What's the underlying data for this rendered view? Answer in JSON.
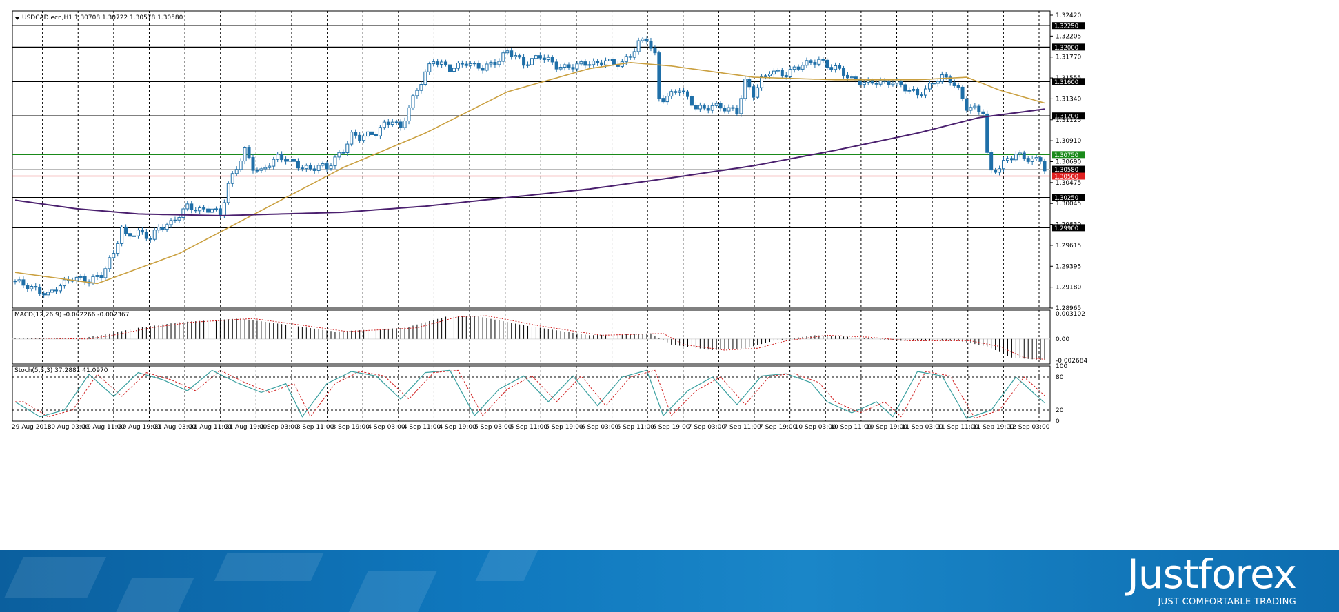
{
  "header": {
    "symbol_line": "USDCAD.ecn,H1  1.30708 1.30722 1.30578 1.30580",
    "macd_line": "MACD(12,26,9) -0.002266 -0.002367",
    "stoch_line": "Stoch(5,3,3) 37.2881 41.0970"
  },
  "colors": {
    "candle": "#1f6fa8",
    "ma_fast": "#caa040",
    "ma_slow": "#4a1f6e",
    "level_line": "#000000",
    "level_green": "#1a8a1a",
    "level_red": "#e02020",
    "macd_signal": "#d02020",
    "stoch_main": "#3aa0a0",
    "stoch_signal": "#d02020"
  },
  "chart_data": {
    "type": "candlestick",
    "symbol": "USDCAD.ecn",
    "timeframe": "H1",
    "ylim": [
      1.28965,
      1.3242
    ],
    "y_ticks": [
      "1.32420",
      "1.32205",
      "1.31770",
      "1.31555",
      "1.31340",
      "1.31125",
      "1.30910",
      "1.30690",
      "1.30475",
      "1.30045",
      "1.29830",
      "1.29615",
      "1.29395",
      "1.29180",
      "1.28965"
    ],
    "x_ticks": [
      "29 Aug 2018",
      "30 Aug 03:00",
      "30 Aug 11:00",
      "30 Aug 19:00",
      "31 Aug 03:00",
      "31 Aug 11:00",
      "31 Aug 19:00",
      "3 Sep 03:00",
      "3 Sep 11:00",
      "3 Sep 19:00",
      "4 Sep 03:00",
      "4 Sep 11:00",
      "4 Sep 19:00",
      "5 Sep 03:00",
      "5 Sep 11:00",
      "5 Sep 19:00",
      "6 Sep 03:00",
      "6 Sep 11:00",
      "6 Sep 19:00",
      "7 Sep 03:00",
      "7 Sep 11:00",
      "7 Sep 19:00",
      "10 Sep 03:00",
      "10 Sep 11:00",
      "10 Sep 19:00",
      "11 Sep 03:00",
      "11 Sep 11:00",
      "11 Sep 19:00",
      "12 Sep 03:00"
    ],
    "current_price": "1.30580",
    "levels": [
      {
        "label": "1.32250",
        "value": 1.3225,
        "color": "#000000"
      },
      {
        "label": "1.32000",
        "value": 1.32,
        "color": "#000000"
      },
      {
        "label": "1.31600",
        "value": 1.316,
        "color": "#000000"
      },
      {
        "label": "1.31200",
        "value": 1.312,
        "color": "#000000"
      },
      {
        "label": "1.30750",
        "value": 1.3075,
        "color": "#1a8a1a"
      },
      {
        "label": "1.30500",
        "value": 1.305,
        "color": "#e02020"
      },
      {
        "label": "1.30250",
        "value": 1.3025,
        "color": "#000000"
      },
      {
        "label": "1.29900",
        "value": 1.299,
        "color": "#000000"
      }
    ],
    "close_path": [
      [
        0,
        1.2928
      ],
      [
        5,
        1.2918
      ],
      [
        8,
        1.2912
      ],
      [
        10,
        1.292
      ],
      [
        14,
        1.2932
      ],
      [
        18,
        1.2928
      ],
      [
        21,
        1.2935
      ],
      [
        24,
        1.296
      ],
      [
        26,
        1.299
      ],
      [
        27,
        1.298
      ],
      [
        30,
        1.2985
      ],
      [
        33,
        1.2978
      ],
      [
        35,
        1.299
      ],
      [
        38,
        1.2995
      ],
      [
        40,
        1.3005
      ],
      [
        42,
        1.3015
      ],
      [
        45,
        1.301
      ],
      [
        48,
        1.3012
      ],
      [
        50,
        1.3005
      ],
      [
        52,
        1.304
      ],
      [
        54,
        1.306
      ],
      [
        56,
        1.308
      ],
      [
        58,
        1.306
      ],
      [
        60,
        1.3055
      ],
      [
        62,
        1.3065
      ],
      [
        64,
        1.3072
      ],
      [
        66,
        1.307
      ],
      [
        68,
        1.3065
      ],
      [
        70,
        1.306
      ],
      [
        72,
        1.3058
      ],
      [
        74,
        1.3062
      ],
      [
        76,
        1.306
      ],
      [
        78,
        1.307
      ],
      [
        80,
        1.308
      ],
      [
        82,
        1.3098
      ],
      [
        84,
        1.3095
      ],
      [
        86,
        1.3098
      ],
      [
        88,
        1.31
      ],
      [
        90,
        1.311
      ],
      [
        92,
        1.3115
      ],
      [
        94,
        1.3105
      ],
      [
        96,
        1.313
      ],
      [
        98,
        1.315
      ],
      [
        100,
        1.317
      ],
      [
        102,
        1.3185
      ],
      [
        104,
        1.318
      ],
      [
        106,
        1.3175
      ],
      [
        108,
        1.3178
      ],
      [
        110,
        1.3182
      ],
      [
        112,
        1.3178
      ],
      [
        114,
        1.3176
      ],
      [
        116,
        1.318
      ],
      [
        118,
        1.3185
      ],
      [
        120,
        1.3195
      ],
      [
        122,
        1.319
      ],
      [
        124,
        1.318
      ],
      [
        126,
        1.3185
      ],
      [
        128,
        1.319
      ],
      [
        130,
        1.3185
      ],
      [
        132,
        1.3178
      ],
      [
        134,
        1.3176
      ],
      [
        136,
        1.3178
      ],
      [
        138,
        1.318
      ],
      [
        140,
        1.3182
      ],
      [
        142,
        1.318
      ],
      [
        144,
        1.3185
      ],
      [
        146,
        1.318
      ],
      [
        148,
        1.3182
      ],
      [
        150,
        1.319
      ],
      [
        152,
        1.3205
      ],
      [
        154,
        1.321
      ],
      [
        156,
        1.319
      ],
      [
        157,
        1.314
      ],
      [
        158,
        1.314
      ],
      [
        160,
        1.3145
      ],
      [
        162,
        1.3152
      ],
      [
        164,
        1.314
      ],
      [
        166,
        1.313
      ],
      [
        168,
        1.3128
      ],
      [
        170,
        1.3132
      ],
      [
        172,
        1.313
      ],
      [
        174,
        1.3128
      ],
      [
        176,
        1.3125
      ],
      [
        178,
        1.316
      ],
      [
        180,
        1.3145
      ],
      [
        182,
        1.3162
      ],
      [
        184,
        1.3172
      ],
      [
        186,
        1.317
      ],
      [
        188,
        1.3168
      ],
      [
        190,
        1.3175
      ],
      [
        192,
        1.318
      ],
      [
        194,
        1.3182
      ],
      [
        196,
        1.3185
      ],
      [
        198,
        1.3178
      ],
      [
        200,
        1.3176
      ],
      [
        202,
        1.317
      ],
      [
        204,
        1.3162
      ],
      [
        206,
        1.316
      ],
      [
        208,
        1.3158
      ],
      [
        210,
        1.316
      ],
      [
        212,
        1.3158
      ],
      [
        214,
        1.316
      ],
      [
        216,
        1.3155
      ],
      [
        218,
        1.315
      ],
      [
        220,
        1.3145
      ],
      [
        222,
        1.315
      ],
      [
        224,
        1.316
      ],
      [
        226,
        1.3165
      ],
      [
        228,
        1.3162
      ],
      [
        230,
        1.315
      ],
      [
        232,
        1.313
      ],
      [
        234,
        1.3128
      ],
      [
        236,
        1.3125
      ],
      [
        237,
        1.3075
      ],
      [
        238,
        1.3055
      ],
      [
        240,
        1.306
      ],
      [
        242,
        1.307
      ],
      [
        244,
        1.3075
      ],
      [
        246,
        1.3072
      ],
      [
        248,
        1.3068
      ],
      [
        250,
        1.307
      ],
      [
        251,
        1.3058
      ]
    ],
    "series": [
      {
        "name": "MA fast",
        "path": [
          [
            0,
            1.2938
          ],
          [
            20,
            1.2925
          ],
          [
            40,
            1.296
          ],
          [
            60,
            1.301
          ],
          [
            80,
            1.306
          ],
          [
            100,
            1.31
          ],
          [
            120,
            1.3148
          ],
          [
            140,
            1.3175
          ],
          [
            150,
            1.3182
          ],
          [
            160,
            1.3178
          ],
          [
            180,
            1.3165
          ],
          [
            200,
            1.3162
          ],
          [
            220,
            1.3162
          ],
          [
            232,
            1.3165
          ],
          [
            240,
            1.315
          ],
          [
            251,
            1.3135
          ]
        ]
      },
      {
        "name": "MA slow",
        "path": [
          [
            0,
            1.3022
          ],
          [
            15,
            1.3012
          ],
          [
            30,
            1.3006
          ],
          [
            50,
            1.3004
          ],
          [
            80,
            1.3008
          ],
          [
            100,
            1.3015
          ],
          [
            120,
            1.3025
          ],
          [
            140,
            1.3035
          ],
          [
            160,
            1.3048
          ],
          [
            180,
            1.3062
          ],
          [
            200,
            1.308
          ],
          [
            220,
            1.31
          ],
          [
            235,
            1.3118
          ],
          [
            251,
            1.3128
          ]
        ]
      }
    ],
    "macd": {
      "ylim": [
        -0.002684,
        0.003102
      ],
      "y_ticks": [
        "0.003102",
        "0.00",
        "-0.002684"
      ],
      "hist_path": [
        [
          0,
          0.0001
        ],
        [
          15,
          0.0
        ],
        [
          22,
          0.0005
        ],
        [
          30,
          0.0012
        ],
        [
          40,
          0.0018
        ],
        [
          55,
          0.0022
        ],
        [
          65,
          0.0016
        ],
        [
          78,
          0.0008
        ],
        [
          95,
          0.0012
        ],
        [
          105,
          0.0024
        ],
        [
          112,
          0.0025
        ],
        [
          125,
          0.0014
        ],
        [
          140,
          0.0004
        ],
        [
          155,
          0.0006
        ],
        [
          160,
          -0.0006
        ],
        [
          170,
          -0.0012
        ],
        [
          178,
          -0.001
        ],
        [
          185,
          -0.0002
        ],
        [
          195,
          0.0004
        ],
        [
          205,
          0.0002
        ],
        [
          215,
          -0.0002
        ],
        [
          230,
          -0.0002
        ],
        [
          237,
          -0.0008
        ],
        [
          243,
          -0.002
        ],
        [
          251,
          -0.0023
        ]
      ]
    },
    "stochastic": {
      "ylim": [
        0,
        100
      ],
      "y_ticks": [
        "100",
        "80",
        "20",
        "0"
      ],
      "levels": [
        80,
        20
      ],
      "main_path": [
        [
          0,
          35
        ],
        [
          6,
          8
        ],
        [
          12,
          20
        ],
        [
          18,
          85
        ],
        [
          24,
          45
        ],
        [
          30,
          88
        ],
        [
          36,
          75
        ],
        [
          42,
          55
        ],
        [
          48,
          92
        ],
        [
          54,
          70
        ],
        [
          60,
          52
        ],
        [
          66,
          68
        ],
        [
          70,
          8
        ],
        [
          76,
          68
        ],
        [
          82,
          90
        ],
        [
          88,
          82
        ],
        [
          94,
          40
        ],
        [
          100,
          88
        ],
        [
          106,
          92
        ],
        [
          112,
          10
        ],
        [
          118,
          58
        ],
        [
          124,
          82
        ],
        [
          130,
          35
        ],
        [
          136,
          82
        ],
        [
          142,
          28
        ],
        [
          148,
          80
        ],
        [
          154,
          92
        ],
        [
          158,
          10
        ],
        [
          164,
          55
        ],
        [
          170,
          80
        ],
        [
          176,
          30
        ],
        [
          182,
          82
        ],
        [
          188,
          86
        ],
        [
          194,
          70
        ],
        [
          198,
          35
        ],
        [
          204,
          15
        ],
        [
          210,
          35
        ],
        [
          214,
          8
        ],
        [
          220,
          90
        ],
        [
          226,
          82
        ],
        [
          232,
          5
        ],
        [
          238,
          20
        ],
        [
          244,
          80
        ],
        [
          251,
          33
        ]
      ]
    }
  },
  "brand": {
    "name": "Justforex",
    "tagline": "JUST COMFORTABLE TRADING"
  }
}
